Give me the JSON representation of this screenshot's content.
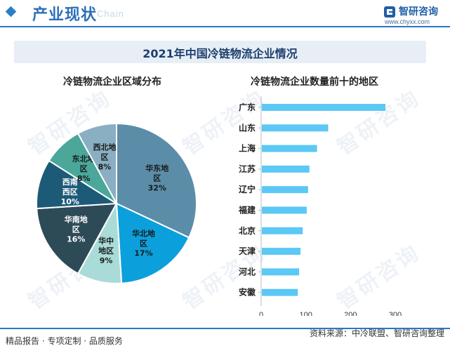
{
  "header": {
    "title": "产业现状",
    "subtitle": "Chain",
    "brand_name": "智研咨询",
    "brand_url": "www.chyxx.com"
  },
  "watermark_text": "智研咨询",
  "chart_title": "2021年中国冷链物流企业情况",
  "footer": {
    "left": "精品报告 · 专项定制 · 品质服务",
    "right": "资料来源：中冷联盟、智研咨询整理"
  },
  "colors": {
    "accent": "#2b76c4",
    "bar": "#5bc8f5"
  },
  "chart_data": [
    {
      "type": "pie",
      "title": "冷链物流企业区域分布",
      "slices": [
        {
          "label_lines": [
            "华东地",
            "区"
          ],
          "percent_label": "32%",
          "value": 32,
          "color": "#5b8da8",
          "text_color": "#1a1a1a"
        },
        {
          "label_lines": [
            "华北地",
            "区"
          ],
          "percent_label": "17%",
          "value": 17,
          "color": "#0ba0dc",
          "text_color": "#1a1a1a"
        },
        {
          "label_lines": [
            "华中",
            "地区"
          ],
          "percent_label": "9%",
          "value": 9,
          "color": "#a9dcd8",
          "text_color": "#1a1a1a"
        },
        {
          "label_lines": [
            "华南地",
            "区"
          ],
          "percent_label": "16%",
          "value": 16,
          "color": "#2d4a57",
          "text_color": "#ffffff"
        },
        {
          "label_lines": [
            "西南",
            "西区"
          ],
          "percent_label": "10%",
          "value": 10,
          "color": "#1d5a78",
          "text_color": "#ffffff"
        },
        {
          "label_lines": [
            "东北地",
            "区"
          ],
          "percent_label": "8%",
          "value": 8,
          "color": "#4aa79a",
          "text_color": "#1a1a1a"
        },
        {
          "label_lines": [
            "西北地",
            "区"
          ],
          "percent_label": "8%",
          "value": 8,
          "color": "#8aaec2",
          "text_color": "#1a1a1a"
        }
      ]
    },
    {
      "type": "bar",
      "orientation": "horizontal",
      "title": "冷链物流企业数量前十的地区",
      "categories": [
        "广东",
        "山东",
        "上海",
        "江苏",
        "辽宁",
        "福建",
        "北京",
        "天津",
        "河北",
        "安徽"
      ],
      "values": [
        278,
        150,
        125,
        108,
        105,
        102,
        93,
        88,
        85,
        82
      ],
      "xlim": [
        0,
        300
      ],
      "xticks": [
        "0",
        "100",
        "200",
        "300"
      ]
    }
  ]
}
